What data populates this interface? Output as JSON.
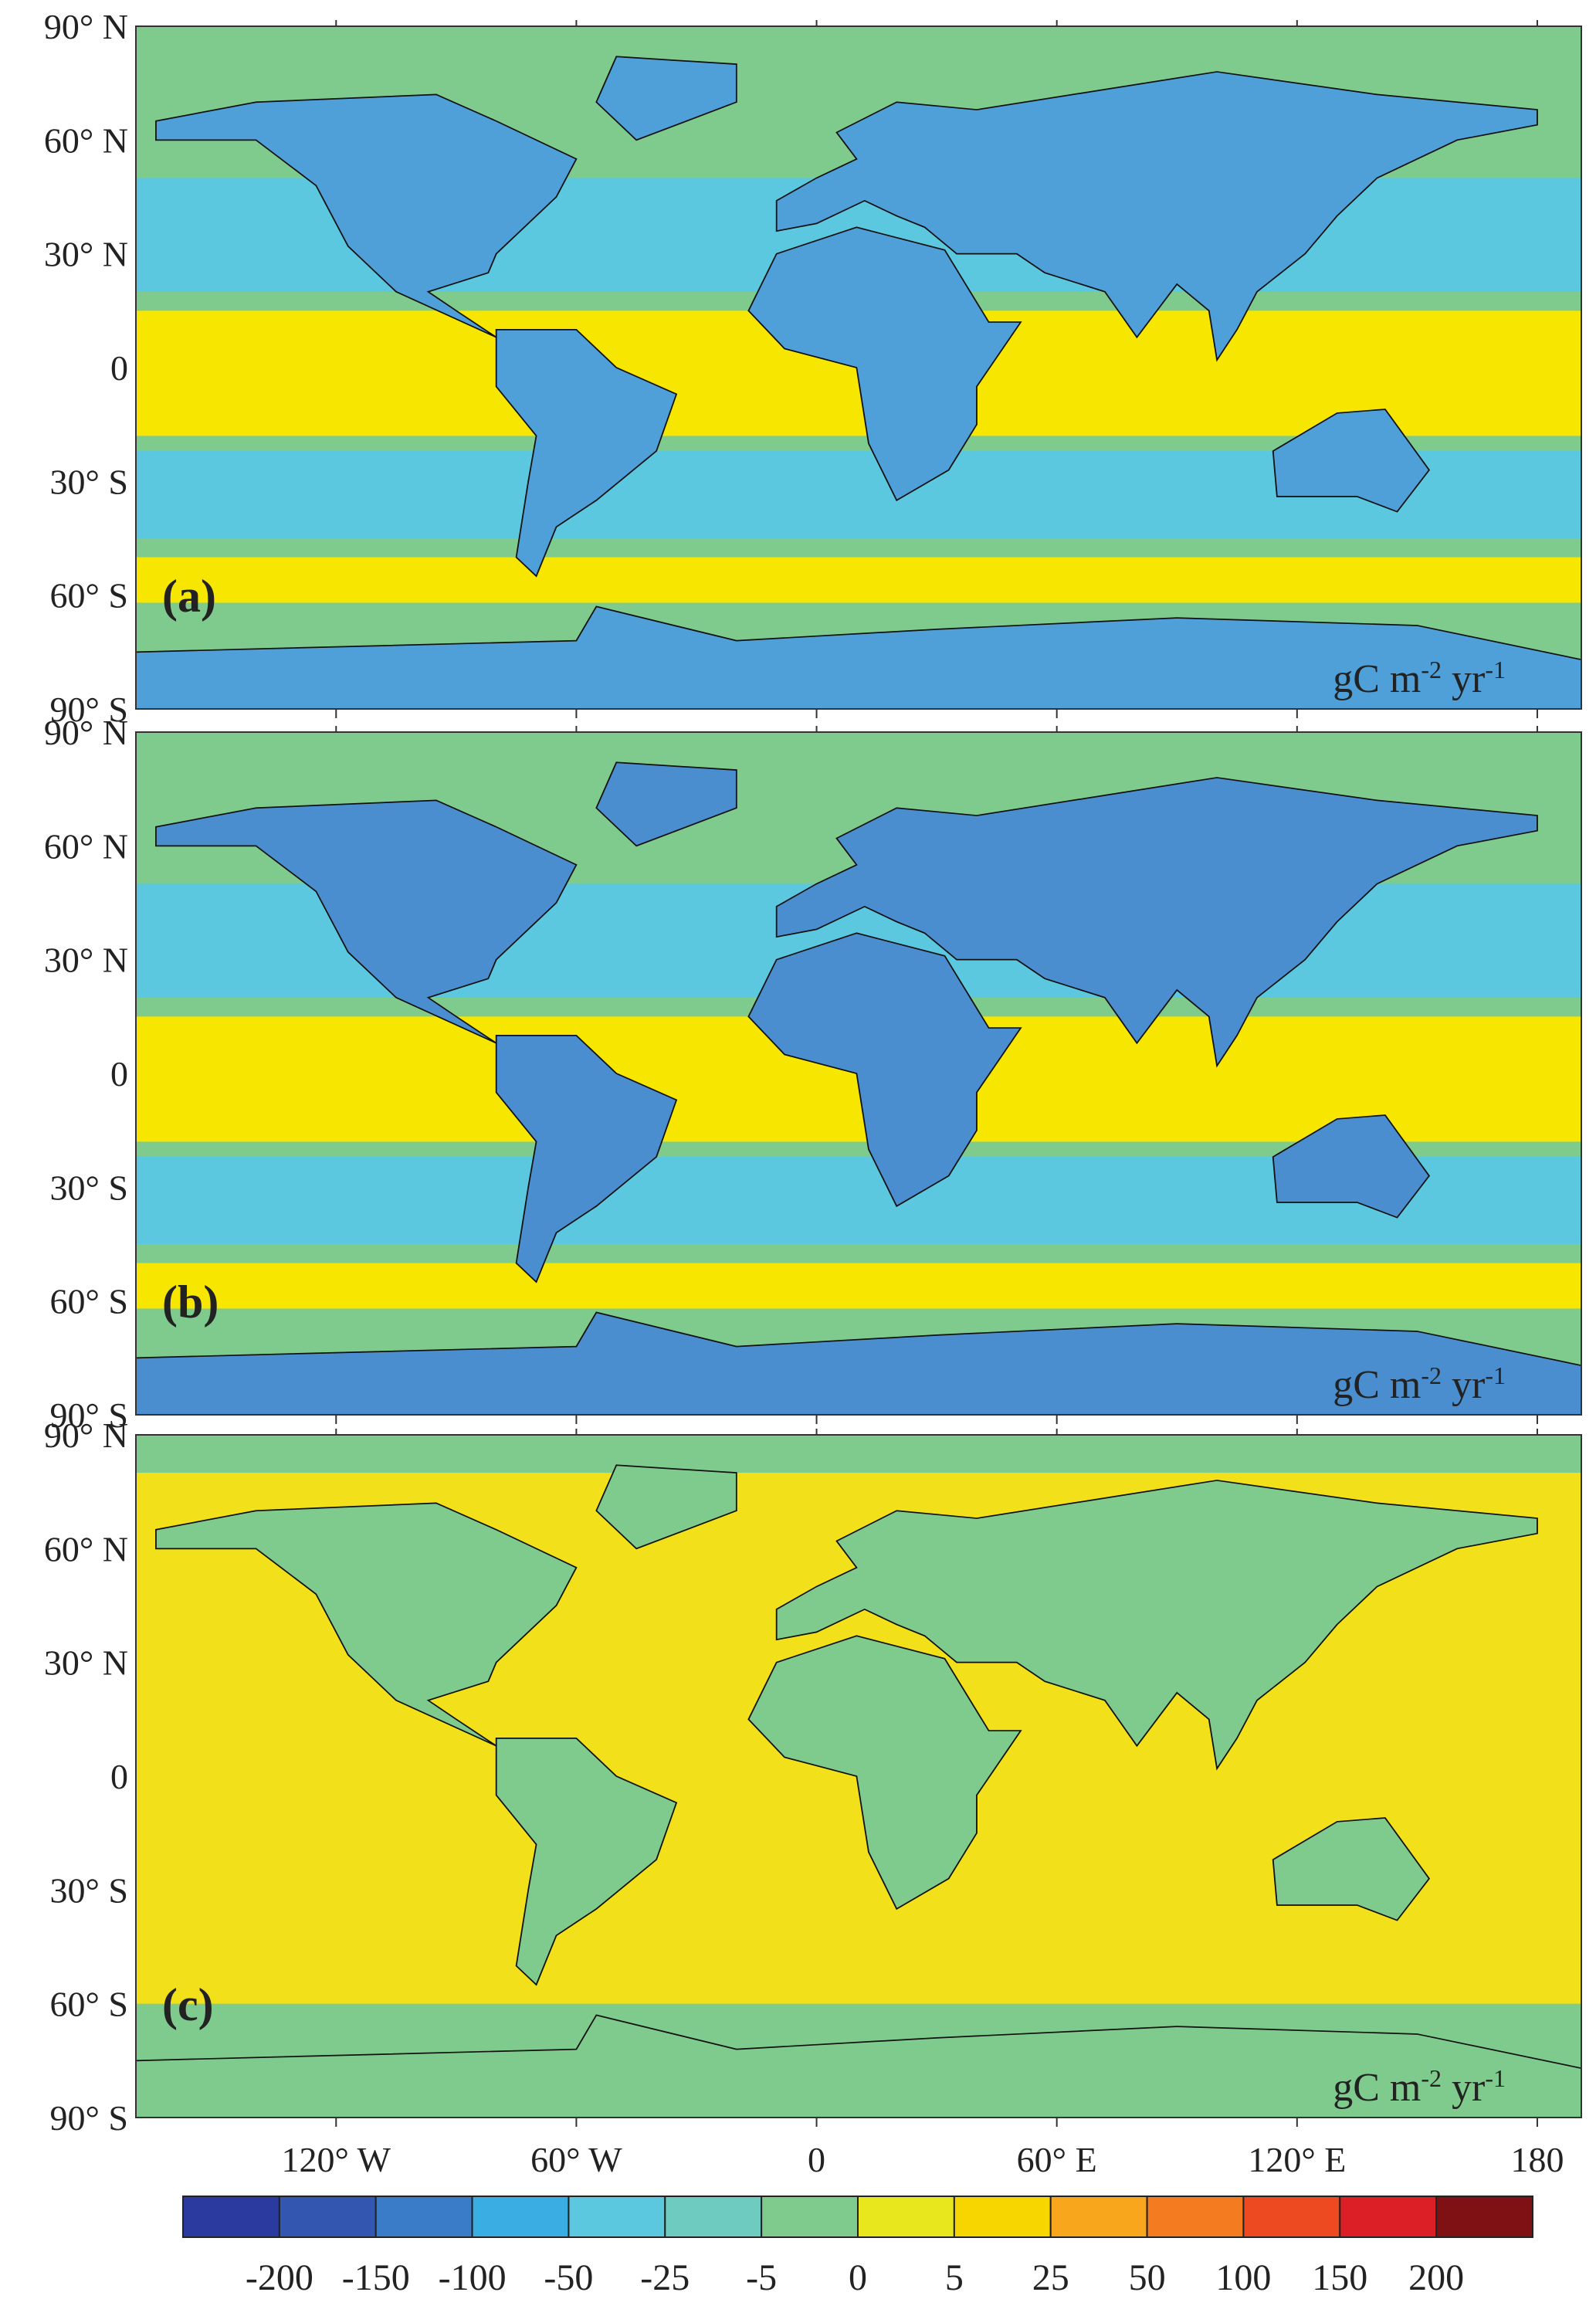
{
  "panels": [
    {
      "label": "(a)"
    },
    {
      "label": "(b)"
    },
    {
      "label": "(c)"
    }
  ],
  "unit": {
    "base": "gC m",
    "exp1": "-2",
    "mid": " yr",
    "exp2": "-1"
  },
  "lat_labels": [
    "90° N",
    "60° N",
    "30° N",
    "0",
    "30° S",
    "60° S",
    "90° S"
  ],
  "lon_labels": [
    "120° W",
    "60° W",
    "0",
    "60° E",
    "120° E",
    "180"
  ],
  "legend": {
    "colors": [
      "#2a3a9e",
      "#3357b0",
      "#3b7cc8",
      "#3aaee2",
      "#5bc8e0",
      "#6dcbbf",
      "#7fcb8d",
      "#e8e61c",
      "#f7d600",
      "#f8a61c",
      "#f47b20",
      "#ee4a22",
      "#dc1f26",
      "#7f1014"
    ],
    "ticks": [
      -200,
      -150,
      -100,
      -50,
      -25,
      -5,
      0,
      5,
      25,
      50,
      100,
      150,
      200
    ]
  }
}
